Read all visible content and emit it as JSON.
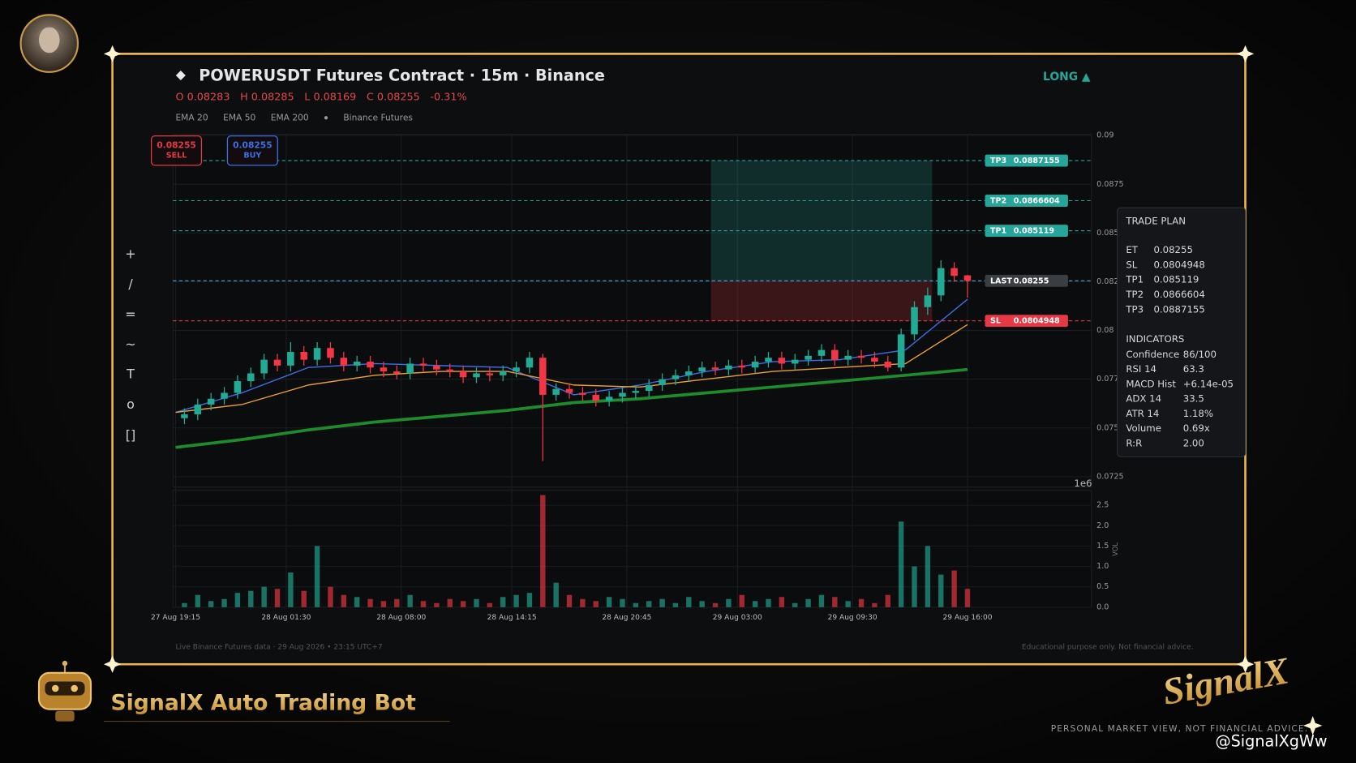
{
  "chart_data": {
    "type": "candlestick",
    "title": "POWERUSDT Futures Contract · 15m · Binance",
    "ohlc_labels": [
      "O",
      "H",
      "L",
      "C"
    ],
    "change": "-0.31%",
    "legend_note": "Binance Futures",
    "direction": "LONG ▲",
    "x": [
      2,
      5,
      8,
      11,
      14,
      17,
      20,
      23,
      26,
      29,
      32,
      35,
      38,
      41,
      44,
      47,
      50,
      53,
      56,
      59,
      62,
      65,
      68,
      71,
      74,
      77,
      80,
      83,
      86,
      89,
      92,
      95,
      98,
      101,
      104,
      107,
      110,
      113,
      116,
      119,
      122,
      125,
      128,
      131,
      134,
      137,
      140,
      143,
      146,
      149,
      152,
      155,
      158,
      161,
      164,
      167,
      170,
      173,
      176,
      179
    ],
    "open": [
      0.0755,
      0.0757,
      0.0762,
      0.0765,
      0.0768,
      0.0774,
      0.0778,
      0.0785,
      0.0782,
      0.0789,
      0.0785,
      0.0791,
      0.0786,
      0.0782,
      0.0784,
      0.0781,
      0.0779,
      0.0778,
      0.0783,
      0.0782,
      0.078,
      0.0779,
      0.0776,
      0.0778,
      0.0777,
      0.0779,
      0.0781,
      0.0786,
      0.0767,
      0.077,
      0.0768,
      0.0767,
      0.0764,
      0.0766,
      0.0768,
      0.0769,
      0.0772,
      0.0775,
      0.0777,
      0.0779,
      0.0781,
      0.078,
      0.0782,
      0.0781,
      0.0784,
      0.0786,
      0.0783,
      0.0785,
      0.0787,
      0.079,
      0.0785,
      0.0787,
      0.0786,
      0.0784,
      0.0781,
      0.0798,
      0.0812,
      0.0818,
      0.0832,
      0.08283
    ],
    "high": [
      0.076,
      0.0765,
      0.0768,
      0.0771,
      0.0777,
      0.0781,
      0.0788,
      0.0788,
      0.0794,
      0.0792,
      0.0794,
      0.0794,
      0.0789,
      0.0787,
      0.0787,
      0.0784,
      0.0782,
      0.0786,
      0.0786,
      0.0785,
      0.0783,
      0.0782,
      0.0781,
      0.0781,
      0.0782,
      0.0784,
      0.0789,
      0.0788,
      0.0773,
      0.0773,
      0.0771,
      0.077,
      0.0769,
      0.0771,
      0.0772,
      0.0775,
      0.0778,
      0.078,
      0.0782,
      0.0784,
      0.0784,
      0.0785,
      0.0785,
      0.0787,
      0.0789,
      0.0789,
      0.0788,
      0.079,
      0.0793,
      0.0793,
      0.079,
      0.079,
      0.0789,
      0.0787,
      0.0801,
      0.0815,
      0.0822,
      0.0836,
      0.0835,
      0.08285
    ],
    "low": [
      0.0752,
      0.0754,
      0.0759,
      0.0762,
      0.0765,
      0.0771,
      0.0775,
      0.0779,
      0.0779,
      0.0782,
      0.0782,
      0.0783,
      0.0779,
      0.0779,
      0.0778,
      0.0776,
      0.0775,
      0.0775,
      0.0779,
      0.0777,
      0.0776,
      0.0773,
      0.0773,
      0.0774,
      0.0774,
      0.0776,
      0.0778,
      0.0733,
      0.0764,
      0.0765,
      0.0764,
      0.0761,
      0.0761,
      0.0763,
      0.0765,
      0.0766,
      0.0769,
      0.0772,
      0.0774,
      0.0776,
      0.0777,
      0.0777,
      0.0778,
      0.0778,
      0.0781,
      0.078,
      0.078,
      0.0782,
      0.0784,
      0.0782,
      0.0782,
      0.0783,
      0.0781,
      0.0779,
      0.0779,
      0.0795,
      0.0808,
      0.0815,
      0.0825,
      0.08169
    ],
    "close": [
      0.0757,
      0.0762,
      0.0765,
      0.0768,
      0.0774,
      0.0778,
      0.0785,
      0.0782,
      0.0789,
      0.0785,
      0.0791,
      0.0786,
      0.0782,
      0.0784,
      0.0781,
      0.0779,
      0.0778,
      0.0783,
      0.0782,
      0.078,
      0.0779,
      0.0776,
      0.0778,
      0.0777,
      0.0779,
      0.0781,
      0.0786,
      0.0767,
      0.077,
      0.0768,
      0.0767,
      0.0764,
      0.0766,
      0.0768,
      0.0769,
      0.0772,
      0.0775,
      0.0777,
      0.0779,
      0.0781,
      0.078,
      0.0782,
      0.0781,
      0.0784,
      0.0786,
      0.0783,
      0.0785,
      0.0787,
      0.079,
      0.0785,
      0.0787,
      0.0786,
      0.0784,
      0.0781,
      0.0798,
      0.0812,
      0.0818,
      0.0832,
      0.0828,
      0.08255
    ],
    "volume": [
      0.1,
      0.3,
      0.15,
      0.2,
      0.35,
      0.4,
      0.5,
      0.45,
      0.85,
      0.4,
      1.5,
      0.5,
      0.3,
      0.25,
      0.2,
      0.15,
      0.2,
      0.3,
      0.15,
      0.1,
      0.2,
      0.15,
      0.2,
      0.1,
      0.25,
      0.3,
      0.35,
      2.75,
      0.6,
      0.3,
      0.2,
      0.15,
      0.25,
      0.2,
      0.1,
      0.15,
      0.2,
      0.1,
      0.25,
      0.15,
      0.1,
      0.2,
      0.3,
      0.15,
      0.2,
      0.25,
      0.1,
      0.2,
      0.3,
      0.25,
      0.15,
      0.2,
      0.1,
      0.3,
      2.1,
      1.0,
      1.5,
      0.8,
      0.9,
      0.45
    ],
    "up_color": "#22ab94",
    "down_color": "#f23645",
    "xlim": [
      -0.6,
      207
    ],
    "xticks": [
      {
        "value": 0,
        "label": "27 Aug 19:15"
      },
      {
        "value": 25,
        "label": "28 Aug 01:30"
      },
      {
        "value": 51,
        "label": "28 Aug 08:00"
      },
      {
        "value": 76,
        "label": "28 Aug 14:15"
      },
      {
        "value": 102,
        "label": "28 Aug 20:45"
      },
      {
        "value": 127,
        "label": "29 Aug 03:00"
      },
      {
        "value": 153,
        "label": "29 Aug 09:30"
      },
      {
        "value": 179,
        "label": "29 Aug 16:00"
      }
    ],
    "ylim": [
      0.07197,
      0.09007
    ],
    "yticks": [
      0.0725,
      0.075,
      0.0775,
      0.08,
      0.0825,
      0.085,
      0.0875,
      0.09
    ],
    "grid": true,
    "volume_axis": {
      "label": "VOL",
      "offset": "1e6",
      "ylim": [
        0,
        2.8
      ],
      "yticks": [
        {
          "value": 0,
          "label": "0.0"
        },
        {
          "value": 0.5,
          "label": "0.5"
        },
        {
          "value": 1,
          "label": "1.0"
        },
        {
          "value": 1.5,
          "label": "1.5"
        },
        {
          "value": 2,
          "label": "2.0"
        },
        {
          "value": 2.5,
          "label": "2.5"
        }
      ]
    },
    "series": [
      {
        "name": "EMA 20",
        "color": "#3f6fe8",
        "width": 1.3,
        "x": [
          0,
          15,
          30,
          45,
          60,
          75,
          90,
          105,
          120,
          135,
          150,
          165,
          179
        ],
        "values": [
          0.0758,
          0.0768,
          0.0781,
          0.0783,
          0.0782,
          0.0781,
          0.0767,
          0.0772,
          0.0779,
          0.0784,
          0.0785,
          0.079,
          0.0816
        ]
      },
      {
        "name": "EMA 50",
        "color": "#f0a030",
        "width": 1.3,
        "x": [
          0,
          15,
          30,
          45,
          60,
          75,
          90,
          105,
          120,
          135,
          150,
          165,
          179
        ],
        "values": [
          0.0758,
          0.0762,
          0.0772,
          0.0777,
          0.0779,
          0.0779,
          0.0772,
          0.0771,
          0.0775,
          0.0779,
          0.0781,
          0.0783,
          0.0803
        ]
      },
      {
        "name": "EMA 200",
        "color": "#1e8c2c",
        "width": 3.5,
        "x": [
          0,
          15,
          30,
          45,
          60,
          75,
          90,
          105,
          120,
          135,
          150,
          165,
          179
        ],
        "values": [
          0.074,
          0.0744,
          0.0749,
          0.0753,
          0.0756,
          0.0759,
          0.0763,
          0.0765,
          0.0768,
          0.0771,
          0.0774,
          0.0777,
          0.078
        ]
      }
    ],
    "levels": [
      {
        "name": "TP3",
        "value": 0.0887155,
        "color": "#26a69a",
        "label_color": "#26a69a"
      },
      {
        "name": "TP2",
        "value": 0.0866604,
        "color": "#26a69a",
        "label_color": "#26a69a"
      },
      {
        "name": "TP1",
        "value": 0.085119,
        "color": "#26a69a",
        "label_color": "#26a69a"
      },
      {
        "name": "LAST",
        "value": 0.08255,
        "color": "#4aa3df",
        "label_color": "#3a3d42"
      },
      {
        "name": "SL",
        "value": 0.0804948,
        "color": "#e53945",
        "label_color": "#e53945"
      }
    ],
    "trade_box_x": [
      121,
      171
    ],
    "order_buttons": [
      {
        "label": "SELL",
        "color": "#e53945"
      },
      {
        "label": "BUY",
        "color": "#3f6fe8"
      }
    ],
    "trade_plan": {
      "title": "TRADE PLAN",
      "rows": [
        [
          "ET",
          "0.08255"
        ],
        [
          "SL",
          "0.0804948"
        ],
        [
          "TP1",
          "0.085119"
        ],
        [
          "TP2",
          "0.0866604"
        ],
        [
          "TP3",
          "0.0887155"
        ]
      ],
      "indicators_title": "INDICATORS",
      "indicators": [
        [
          "Confidence",
          "86/100"
        ],
        [
          "RSI 14",
          "63.3"
        ],
        [
          "MACD Hist",
          "+6.14e-05"
        ],
        [
          "ADX 14",
          "33.5"
        ],
        [
          "ATR 14",
          "1.18%"
        ],
        [
          "Volume",
          "0.69x"
        ],
        [
          "R:R",
          "2.00"
        ]
      ]
    }
  },
  "toolbar": [
    "+",
    "/",
    "=",
    "~",
    "T",
    "o",
    "[]"
  ],
  "footer": {
    "source": "Live Binance Futures data  ·  29 Aug 2026 • 23:15 UTC+7",
    "disclaimer": "Educational purpose only. Not financial advice."
  },
  "brand": {
    "name": "SignalX Auto Trading Bot",
    "logo": "SignalX",
    "tagline": "PERSONAL MARKET VIEW, NOT FINANCIAL ADVICE.",
    "watermark": "@SignalXgWw"
  }
}
